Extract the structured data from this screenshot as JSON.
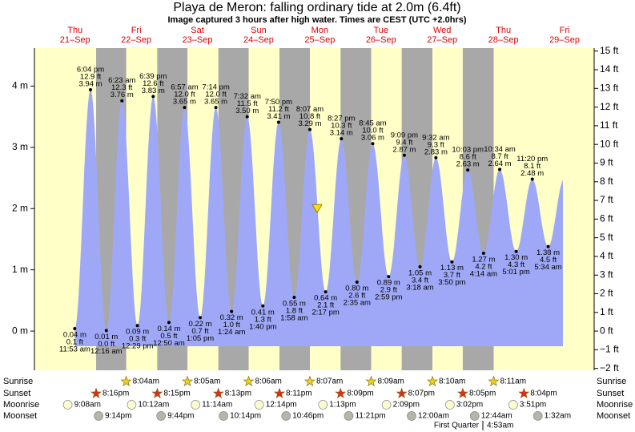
{
  "chart_data": {
    "type": "area",
    "title": "Playa de Meron: falling  ordinary tide at 2.0m (6.4ft)",
    "subtitle": "Image captured 3 hours after high water. Times are CEST (UTC +2.0hrs)",
    "days": [
      {
        "name": "Thu",
        "date": "21–Sep"
      },
      {
        "name": "Fri",
        "date": "22–Sep"
      },
      {
        "name": "Sat",
        "date": "23–Sep"
      },
      {
        "name": "Sun",
        "date": "24–Sep"
      },
      {
        "name": "Mon",
        "date": "25–Sep"
      },
      {
        "name": "Tue",
        "date": "26–Sep"
      },
      {
        "name": "Wed",
        "date": "27–Sep"
      },
      {
        "name": "Thu",
        "date": "28–Sep"
      },
      {
        "name": "Fri",
        "date": "29–Sep"
      }
    ],
    "ylim": [
      -0.64,
      4.62
    ],
    "yticks": [
      {
        "value": 0,
        "label": "0 m"
      },
      {
        "value": 1,
        "label": "1 m"
      },
      {
        "value": 2,
        "label": "2 m"
      },
      {
        "value": 3,
        "label": "3 m"
      },
      {
        "value": 4,
        "label": "4 m"
      }
    ],
    "y2lim": [
      -2.1,
      15.16
    ],
    "y2ticks": [
      {
        "value": -2,
        "label": "−2 ft"
      },
      {
        "value": -1,
        "label": "−1 ft"
      },
      {
        "value": 0,
        "label": "0 ft"
      },
      {
        "value": 1,
        "label": "1 ft"
      },
      {
        "value": 2,
        "label": "2 ft"
      },
      {
        "value": 3,
        "label": "3 ft"
      },
      {
        "value": 4,
        "label": "4 ft"
      },
      {
        "value": 5,
        "label": "5 ft"
      },
      {
        "value": 6,
        "label": "6 ft"
      },
      {
        "value": 7,
        "label": "7 ft"
      },
      {
        "value": 8,
        "label": "8 ft"
      },
      {
        "value": 9,
        "label": "9 ft"
      },
      {
        "value": 10,
        "label": "10 ft"
      },
      {
        "value": 11,
        "label": "11 ft"
      },
      {
        "value": 12,
        "label": "12 ft"
      },
      {
        "value": 13,
        "label": "13 ft"
      },
      {
        "value": 14,
        "label": "14 ft"
      },
      {
        "value": 15,
        "label": "15 ft"
      }
    ],
    "current_height": 2.0,
    "extremes": [
      {
        "time": "11:53 am",
        "height": {
          "value": 0.04,
          "label": "0.04 m"
        },
        "height_ft": {
          "value": 0.1,
          "label": "0.1 ft"
        }
      },
      {
        "time": "6:04 pm",
        "height": {
          "value": 3.94,
          "label": "3.94 m"
        },
        "height_ft": {
          "value": 12.9,
          "label": "12.9 ft"
        }
      },
      {
        "time": "12:16 am",
        "height": {
          "value": 0.01,
          "label": "0.01 m"
        },
        "height_ft": {
          "value": 0.0,
          "label": "0.0 ft"
        }
      },
      {
        "time": "6:23 am",
        "height": {
          "value": 3.76,
          "label": "3.76 m"
        },
        "height_ft": {
          "value": 12.3,
          "label": "12.3 ft"
        }
      },
      {
        "time": "12:29 pm",
        "height": {
          "value": 0.09,
          "label": "0.09 m"
        },
        "height_ft": {
          "value": 0.3,
          "label": "0.3 ft"
        }
      },
      {
        "time": "6:39 pm",
        "height": {
          "value": 3.83,
          "label": "3.83 m"
        },
        "height_ft": {
          "value": 12.6,
          "label": "12.6 ft"
        }
      },
      {
        "time": "12:50 am",
        "height": {
          "value": 0.14,
          "label": "0.14 m"
        },
        "height_ft": {
          "value": 0.5,
          "label": "0.5 ft"
        }
      },
      {
        "time": "6:57 am",
        "height": {
          "value": 3.65,
          "label": "3.65 m"
        },
        "height_ft": {
          "value": 12.0,
          "label": "12.0 ft"
        }
      },
      {
        "time": "1:05 pm",
        "height": {
          "value": 0.22,
          "label": "0.22 m"
        },
        "height_ft": {
          "value": 0.7,
          "label": "0.7 ft"
        }
      },
      {
        "time": "7:14 pm",
        "height": {
          "value": 3.65,
          "label": "3.65 m"
        },
        "height_ft": {
          "value": 12.0,
          "label": "12.0 ft"
        }
      },
      {
        "time": "1:24 am",
        "height": {
          "value": 0.32,
          "label": "0.32 m"
        },
        "height_ft": {
          "value": 1.0,
          "label": "1.0 ft"
        }
      },
      {
        "time": "7:32 am",
        "height": {
          "value": 3.5,
          "label": "3.50 m"
        },
        "height_ft": {
          "value": 11.5,
          "label": "11.5 ft"
        }
      },
      {
        "time": "1:40 pm",
        "height": {
          "value": 0.41,
          "label": "0.41 m"
        },
        "height_ft": {
          "value": 1.3,
          "label": "1.3 ft"
        }
      },
      {
        "time": "7:50 pm",
        "height": {
          "value": 3.41,
          "label": "3.41 m"
        },
        "height_ft": {
          "value": 11.2,
          "label": "11.2 ft"
        }
      },
      {
        "time": "1:58 am",
        "height": {
          "value": 0.55,
          "label": "0.55 m"
        },
        "height_ft": {
          "value": 1.8,
          "label": "1.8 ft"
        }
      },
      {
        "time": "8:07 am",
        "height": {
          "value": 3.29,
          "label": "3.29 m"
        },
        "height_ft": {
          "value": 10.8,
          "label": "10.8 ft"
        }
      },
      {
        "time": "2:17 pm",
        "height": {
          "value": 0.64,
          "label": "0.64 m"
        },
        "height_ft": {
          "value": 2.1,
          "label": "2.1 ft"
        }
      },
      {
        "time": "8:27 pm",
        "height": {
          "value": 3.14,
          "label": "3.14 m"
        },
        "height_ft": {
          "value": 10.3,
          "label": "10.3 ft"
        }
      },
      {
        "time": "2:35 am",
        "height": {
          "value": 0.8,
          "label": "0.80 m"
        },
        "height_ft": {
          "value": 2.6,
          "label": "2.6 ft"
        }
      },
      {
        "time": "8:45 am",
        "height": {
          "value": 3.06,
          "label": "3.06 m"
        },
        "height_ft": {
          "value": 10.0,
          "label": "10.0 ft"
        }
      },
      {
        "time": "2:59 pm",
        "height": {
          "value": 0.89,
          "label": "0.89 m"
        },
        "height_ft": {
          "value": 2.9,
          "label": "2.9 ft"
        }
      },
      {
        "time": "9:09 pm",
        "height": {
          "value": 2.87,
          "label": "2.87 m"
        },
        "height_ft": {
          "value": 9.4,
          "label": "9.4 ft"
        }
      },
      {
        "time": "3:18 am",
        "height": {
          "value": 1.05,
          "label": "1.05 m"
        },
        "height_ft": {
          "value": 3.4,
          "label": "3.4 ft"
        }
      },
      {
        "time": "9:32 am",
        "height": {
          "value": 2.83,
          "label": "2.83 m"
        },
        "height_ft": {
          "value": 9.3,
          "label": "9.3 ft"
        }
      },
      {
        "time": "3:50 pm",
        "height": {
          "value": 1.13,
          "label": "1.13 m"
        },
        "height_ft": {
          "value": 3.7,
          "label": "3.7 ft"
        }
      },
      {
        "time": "10:03 pm",
        "height": {
          "value": 2.63,
          "label": "2.63 m"
        },
        "height_ft": {
          "value": 8.6,
          "label": "8.6 ft"
        }
      },
      {
        "time": "4:14 am",
        "height": {
          "value": 1.27,
          "label": "1.27 m"
        },
        "height_ft": {
          "value": 4.2,
          "label": "4.2 ft"
        }
      },
      {
        "time": "10:34 am",
        "height": {
          "value": 2.64,
          "label": "2.64 m"
        },
        "height_ft": {
          "value": 8.7,
          "label": "8.7 ft"
        }
      },
      {
        "time": "5:01 pm",
        "height": {
          "value": 1.3,
          "label": "1.30 m"
        },
        "height_ft": {
          "value": 4.3,
          "label": "4.3 ft"
        }
      },
      {
        "time": "11:20 pm",
        "height": {
          "value": 2.48,
          "label": "2.48 m"
        },
        "height_ft": {
          "value": 8.1,
          "label": "8.1 ft"
        }
      },
      {
        "time": "5:34 am",
        "height": {
          "value": 1.38,
          "label": "1.38 m"
        },
        "height_ft": {
          "value": 4.5,
          "label": "4.5 ft"
        }
      }
    ],
    "row_labels": {
      "sunrise": "Sunrise",
      "sunset": "Sunset",
      "moonrise": "Moonrise",
      "moonset": "Moonset"
    },
    "sunrise": [
      "8:04am",
      "8:05am",
      "8:06am",
      "8:07am",
      "8:09am",
      "8:10am",
      "8:11am"
    ],
    "sunset": [
      "8:16pm",
      "8:15pm",
      "8:13pm",
      "8:11pm",
      "8:09pm",
      "8:07pm",
      "8:05pm",
      "8:04pm"
    ],
    "moonrise": [
      "9:08am",
      "10:12am",
      "11:14am",
      "12:14pm",
      "1:13pm",
      "2:09pm",
      "3:02pm",
      "3:51pm"
    ],
    "moonset": [
      "9:14pm",
      "9:44pm",
      "10:14pm",
      "10:46pm",
      "11:21pm",
      "12:00am",
      "12:44am",
      "1:32am"
    ],
    "moon_phase": "First Quarter",
    "moon_phase_time": "4:53am",
    "colors": {
      "water": "#9ea8f7",
      "day": "#ffffc8",
      "night": "#a8a8a8"
    }
  }
}
